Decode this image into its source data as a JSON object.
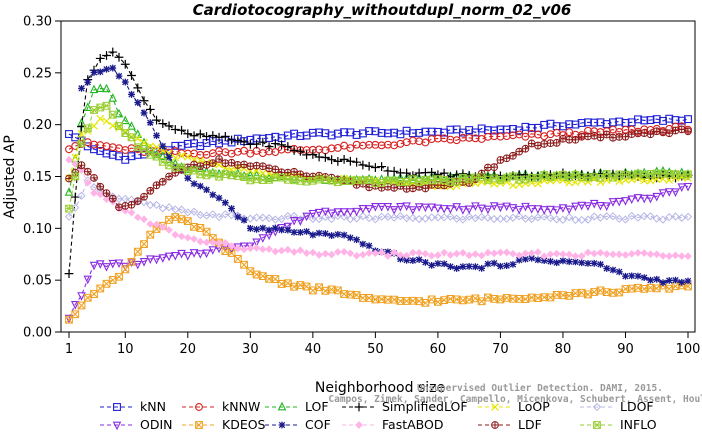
{
  "chart_data": {
    "type": "line",
    "title": "Cardiotocography_withoutdupl_norm_02_v06",
    "xlabel": "Neighborhood size",
    "ylabel": "Adjusted AP",
    "xlim": [
      1,
      100
    ],
    "ylim": [
      0.0,
      0.3
    ],
    "xticks": [
      1,
      10,
      20,
      30,
      40,
      50,
      60,
      70,
      80,
      90,
      100
    ],
    "yticks": [
      "0.00",
      "0.05",
      "0.10",
      "0.15",
      "0.20",
      "0.25",
      "0.30"
    ],
    "grid": false,
    "legend_position": "bottom",
    "watermark": [
      "Campos, Zimek, Sander, Campello, Micenkova, Schubert, Assent, Houle",
      "Unsupervised Outlier Detection. DAMI, 2015."
    ],
    "series": [
      {
        "name": "kNN",
        "color": "#1f1fd6",
        "marker": "square",
        "knots": [
          [
            1,
            0.19
          ],
          [
            3,
            0.185
          ],
          [
            5,
            0.175
          ],
          [
            10,
            0.168
          ],
          [
            20,
            0.18
          ],
          [
            30,
            0.186
          ],
          [
            40,
            0.191
          ],
          [
            50,
            0.192
          ],
          [
            60,
            0.193
          ],
          [
            70,
            0.195
          ],
          [
            80,
            0.2
          ],
          [
            90,
            0.203
          ],
          [
            100,
            0.205
          ]
        ]
      },
      {
        "name": "kNNW",
        "color": "#d62020",
        "marker": "circle",
        "knots": [
          [
            1,
            0.178
          ],
          [
            3,
            0.182
          ],
          [
            6,
            0.18
          ],
          [
            10,
            0.176
          ],
          [
            20,
            0.172
          ],
          [
            30,
            0.174
          ],
          [
            40,
            0.176
          ],
          [
            50,
            0.18
          ],
          [
            60,
            0.185
          ],
          [
            70,
            0.188
          ],
          [
            80,
            0.191
          ],
          [
            90,
            0.194
          ],
          [
            100,
            0.197
          ]
        ]
      },
      {
        "name": "LOF",
        "color": "#22b522",
        "marker": "triangle",
        "knots": [
          [
            1,
            0.135
          ],
          [
            3,
            0.2
          ],
          [
            5,
            0.232
          ],
          [
            7,
            0.236
          ],
          [
            9,
            0.212
          ],
          [
            12,
            0.19
          ],
          [
            15,
            0.172
          ],
          [
            20,
            0.158
          ],
          [
            30,
            0.15
          ],
          [
            40,
            0.148
          ],
          [
            50,
            0.147
          ],
          [
            60,
            0.148
          ],
          [
            70,
            0.15
          ],
          [
            80,
            0.151
          ],
          [
            90,
            0.152
          ],
          [
            100,
            0.154
          ]
        ]
      },
      {
        "name": "SimplifiedLOF",
        "color": "#000000",
        "marker": "plus",
        "knots": [
          [
            1,
            0.055
          ],
          [
            2,
            0.13
          ],
          [
            3,
            0.2
          ],
          [
            4,
            0.245
          ],
          [
            6,
            0.262
          ],
          [
            8,
            0.272
          ],
          [
            10,
            0.258
          ],
          [
            12,
            0.235
          ],
          [
            15,
            0.205
          ],
          [
            20,
            0.19
          ],
          [
            25,
            0.188
          ],
          [
            30,
            0.182
          ],
          [
            35,
            0.18
          ],
          [
            40,
            0.17
          ],
          [
            45,
            0.165
          ],
          [
            50,
            0.16
          ],
          [
            55,
            0.153
          ],
          [
            60,
            0.152
          ],
          [
            70,
            0.15
          ],
          [
            80,
            0.152
          ],
          [
            90,
            0.151
          ],
          [
            100,
            0.15
          ]
        ]
      },
      {
        "name": "LoOP",
        "color": "#e6e600",
        "marker": "x",
        "knots": [
          [
            1,
            0.15
          ],
          [
            3,
            0.19
          ],
          [
            6,
            0.205
          ],
          [
            9,
            0.195
          ],
          [
            12,
            0.185
          ],
          [
            18,
            0.17
          ],
          [
            25,
            0.16
          ],
          [
            35,
            0.15
          ],
          [
            50,
            0.145
          ],
          [
            60,
            0.142
          ],
          [
            70,
            0.143
          ],
          [
            80,
            0.145
          ],
          [
            90,
            0.147
          ],
          [
            100,
            0.148
          ]
        ]
      },
      {
        "name": "LDOF",
        "color": "#b7b7e6",
        "marker": "diamond",
        "knots": [
          [
            1,
            0.11
          ],
          [
            4,
            0.145
          ],
          [
            8,
            0.13
          ],
          [
            12,
            0.125
          ],
          [
            20,
            0.115
          ],
          [
            30,
            0.11
          ],
          [
            40,
            0.11
          ],
          [
            50,
            0.11
          ],
          [
            60,
            0.11
          ],
          [
            70,
            0.11
          ],
          [
            80,
            0.11
          ],
          [
            90,
            0.11
          ],
          [
            100,
            0.11
          ]
        ]
      },
      {
        "name": "ODIN",
        "color": "#8a2be2",
        "marker": "triangle-down",
        "knots": [
          [
            1,
            0.015
          ],
          [
            3,
            0.035
          ],
          [
            5,
            0.065
          ],
          [
            10,
            0.065
          ],
          [
            15,
            0.07
          ],
          [
            20,
            0.075
          ],
          [
            25,
            0.08
          ],
          [
            30,
            0.085
          ],
          [
            35,
            0.1
          ],
          [
            40,
            0.115
          ],
          [
            50,
            0.12
          ],
          [
            60,
            0.12
          ],
          [
            70,
            0.12
          ],
          [
            80,
            0.12
          ],
          [
            90,
            0.125
          ],
          [
            100,
            0.14
          ]
        ]
      },
      {
        "name": "KDEOS",
        "color": "#f0a020",
        "marker": "boxx",
        "knots": [
          [
            1,
            0.01
          ],
          [
            4,
            0.035
          ],
          [
            7,
            0.045
          ],
          [
            10,
            0.06
          ],
          [
            14,
            0.095
          ],
          [
            18,
            0.11
          ],
          [
            22,
            0.1
          ],
          [
            26,
            0.08
          ],
          [
            30,
            0.058
          ],
          [
            35,
            0.048
          ],
          [
            40,
            0.042
          ],
          [
            45,
            0.038
          ],
          [
            50,
            0.03
          ],
          [
            60,
            0.03
          ],
          [
            70,
            0.032
          ],
          [
            80,
            0.036
          ],
          [
            90,
            0.04
          ],
          [
            100,
            0.045
          ]
        ]
      },
      {
        "name": "COF",
        "color": "#1a1a8c",
        "marker": "star",
        "knots": [
          [
            3,
            0.235
          ],
          [
            5,
            0.25
          ],
          [
            8,
            0.255
          ],
          [
            10,
            0.24
          ],
          [
            12,
            0.22
          ],
          [
            15,
            0.19
          ],
          [
            18,
            0.16
          ],
          [
            22,
            0.14
          ],
          [
            26,
            0.125
          ],
          [
            30,
            0.1
          ],
          [
            35,
            0.098
          ],
          [
            40,
            0.095
          ],
          [
            45,
            0.092
          ],
          [
            50,
            0.08
          ],
          [
            55,
            0.07
          ],
          [
            60,
            0.065
          ],
          [
            65,
            0.062
          ],
          [
            70,
            0.065
          ],
          [
            75,
            0.07
          ],
          [
            80,
            0.068
          ],
          [
            85,
            0.066
          ],
          [
            90,
            0.055
          ],
          [
            95,
            0.05
          ],
          [
            100,
            0.048
          ]
        ]
      },
      {
        "name": "FastABOD",
        "color": "#ffb3e6",
        "marker": "diamond-filled",
        "knots": [
          [
            1,
            0.165
          ],
          [
            3,
            0.155
          ],
          [
            5,
            0.135
          ],
          [
            8,
            0.125
          ],
          [
            12,
            0.11
          ],
          [
            16,
            0.1
          ],
          [
            20,
            0.09
          ],
          [
            25,
            0.085
          ],
          [
            30,
            0.08
          ],
          [
            40,
            0.076
          ],
          [
            50,
            0.075
          ],
          [
            60,
            0.075
          ],
          [
            70,
            0.075
          ],
          [
            80,
            0.075
          ],
          [
            90,
            0.075
          ],
          [
            100,
            0.075
          ]
        ]
      },
      {
        "name": "LDF",
        "color": "#8b1a1a",
        "marker": "circle-plus",
        "knots": [
          [
            1,
            0.15
          ],
          [
            3,
            0.16
          ],
          [
            6,
            0.14
          ],
          [
            9,
            0.12
          ],
          [
            12,
            0.125
          ],
          [
            16,
            0.145
          ],
          [
            20,
            0.16
          ],
          [
            25,
            0.165
          ],
          [
            30,
            0.16
          ],
          [
            35,
            0.155
          ],
          [
            40,
            0.15
          ],
          [
            50,
            0.14
          ],
          [
            60,
            0.14
          ],
          [
            65,
            0.145
          ],
          [
            70,
            0.165
          ],
          [
            75,
            0.18
          ],
          [
            80,
            0.185
          ],
          [
            90,
            0.19
          ],
          [
            100,
            0.195
          ]
        ]
      },
      {
        "name": "INFLO",
        "color": "#9acd32",
        "marker": "square-x",
        "knots": [
          [
            1,
            0.12
          ],
          [
            3,
            0.18
          ],
          [
            5,
            0.215
          ],
          [
            7,
            0.22
          ],
          [
            9,
            0.2
          ],
          [
            12,
            0.18
          ],
          [
            16,
            0.165
          ],
          [
            20,
            0.155
          ],
          [
            30,
            0.148
          ],
          [
            40,
            0.146
          ],
          [
            50,
            0.145
          ],
          [
            60,
            0.146
          ],
          [
            70,
            0.148
          ],
          [
            80,
            0.15
          ],
          [
            90,
            0.151
          ],
          [
            100,
            0.152
          ]
        ]
      }
    ]
  }
}
